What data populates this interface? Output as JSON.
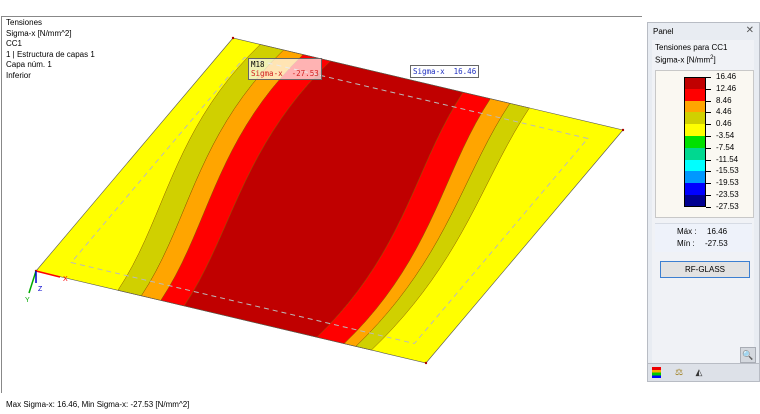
{
  "view": {
    "info_lines": [
      "Tensiones",
      "Sigma-x [N/mm^2]",
      "CC1",
      "1 | Estructura de capas 1",
      "Capa núm. 1",
      "Inferior"
    ],
    "status": "Max Sigma-x: 16.46, Min Sigma-x: -27.53 [N/mm^2]",
    "tooltip_min": {
      "node": "M18",
      "label": "Sigma-x",
      "value": "-27.53"
    },
    "tooltip_max": {
      "label": "Sigma-x",
      "value": "16.46"
    },
    "axes": {
      "x": "X",
      "y": "Y",
      "z": "Z"
    }
  },
  "panel": {
    "title": "Panel",
    "close_icon": "close-icon",
    "heading": "Tensiones para CC1",
    "unit_label": "Sigma-x [N/mm",
    "unit_sup": "2",
    "unit_close": "]",
    "legend": {
      "values": [
        "16.46",
        "12.46",
        "8.46",
        "4.46",
        "0.46",
        "-3.54",
        "-7.54",
        "-11.54",
        "-15.53",
        "-19.53",
        "-23.53",
        "-27.53"
      ],
      "colors": [
        "#c00000",
        "#ff0000",
        "#ffa500",
        "#d0d000",
        "#ffff00",
        "#00e000",
        "#00d890",
        "#00ffff",
        "#0098ff",
        "#0000ff",
        "#000090"
      ]
    },
    "max_label": "Máx :",
    "max_value": "16.46",
    "min_label": "Mín :",
    "min_value": "-27.53",
    "button": "RF-GLASS",
    "tabs": [
      "color-scale-icon",
      "balance-icon",
      "measure-icon"
    ]
  }
}
